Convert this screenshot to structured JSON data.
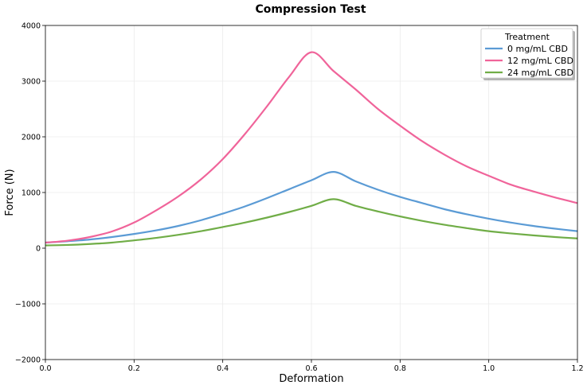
{
  "chart_data": {
    "type": "line",
    "title": "Compression Test",
    "xlabel": "Deformation",
    "ylabel": "Force (N)",
    "xlim": [
      0.0,
      1.2
    ],
    "ylim": [
      -2000,
      4000
    ],
    "xticks": [
      0.0,
      0.2,
      0.4,
      0.6,
      0.8,
      1.0,
      1.2
    ],
    "xtick_labels": [
      "0.0",
      "0.2",
      "0.4",
      "0.6",
      "0.8",
      "1.0",
      "1.2"
    ],
    "yticks": [
      -2000,
      -1000,
      0,
      1000,
      2000,
      3000,
      4000
    ],
    "ytick_labels": [
      "−2000",
      "−1000",
      "0",
      "1000",
      "2000",
      "3000",
      "4000"
    ],
    "grid": true,
    "legend": {
      "title": "Treatment",
      "placement": "top-right"
    },
    "series": [
      {
        "name": "0 mg/mL CBD",
        "color": "#5b9bd5",
        "x": [
          0.0,
          0.05,
          0.1,
          0.15,
          0.2,
          0.25,
          0.3,
          0.35,
          0.4,
          0.45,
          0.5,
          0.55,
          0.6,
          0.65,
          0.7,
          0.75,
          0.8,
          0.85,
          0.9,
          0.95,
          1.0,
          1.05,
          1.1,
          1.15,
          1.2
        ],
        "y": [
          100,
          125,
          155,
          200,
          255,
          320,
          400,
          500,
          620,
          750,
          900,
          1060,
          1220,
          1370,
          1200,
          1050,
          920,
          810,
          700,
          610,
          530,
          460,
          400,
          350,
          305
        ]
      },
      {
        "name": "12 mg/mL CBD",
        "color": "#f0649a",
        "x": [
          0.0,
          0.05,
          0.1,
          0.15,
          0.2,
          0.25,
          0.3,
          0.35,
          0.4,
          0.45,
          0.5,
          0.55,
          0.6,
          0.65,
          0.7,
          0.75,
          0.8,
          0.85,
          0.9,
          0.95,
          1.0,
          1.05,
          1.1,
          1.15,
          1.2
        ],
        "y": [
          100,
          135,
          200,
          300,
          460,
          680,
          930,
          1230,
          1600,
          2050,
          2550,
          3080,
          3520,
          3180,
          2850,
          2500,
          2200,
          1920,
          1680,
          1470,
          1300,
          1140,
          1020,
          910,
          810
        ]
      },
      {
        "name": "24 mg/mL CBD",
        "color": "#70ad47",
        "x": [
          0.0,
          0.05,
          0.1,
          0.15,
          0.2,
          0.25,
          0.3,
          0.35,
          0.4,
          0.45,
          0.5,
          0.55,
          0.6,
          0.65,
          0.7,
          0.75,
          0.8,
          0.85,
          0.9,
          0.95,
          1.0,
          1.05,
          1.1,
          1.15,
          1.2
        ],
        "y": [
          50,
          58,
          75,
          100,
          140,
          185,
          240,
          305,
          380,
          460,
          550,
          650,
          760,
          880,
          760,
          660,
          570,
          490,
          420,
          360,
          305,
          265,
          230,
          200,
          175
        ]
      }
    ]
  }
}
